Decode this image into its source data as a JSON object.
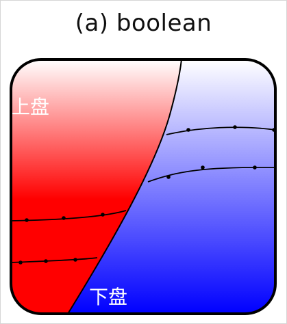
{
  "title": "(a) boolean",
  "labels": {
    "hanging_wall": "上盘",
    "footwall": "下盘"
  },
  "colors": {
    "hanging_wall_top": "#ffffff",
    "hanging_wall_bottom": "#ff0000",
    "footwall_top": "#ffffff",
    "footwall_bottom": "#0000ff",
    "fault_line": "#000000",
    "outline": "#000000"
  }
}
